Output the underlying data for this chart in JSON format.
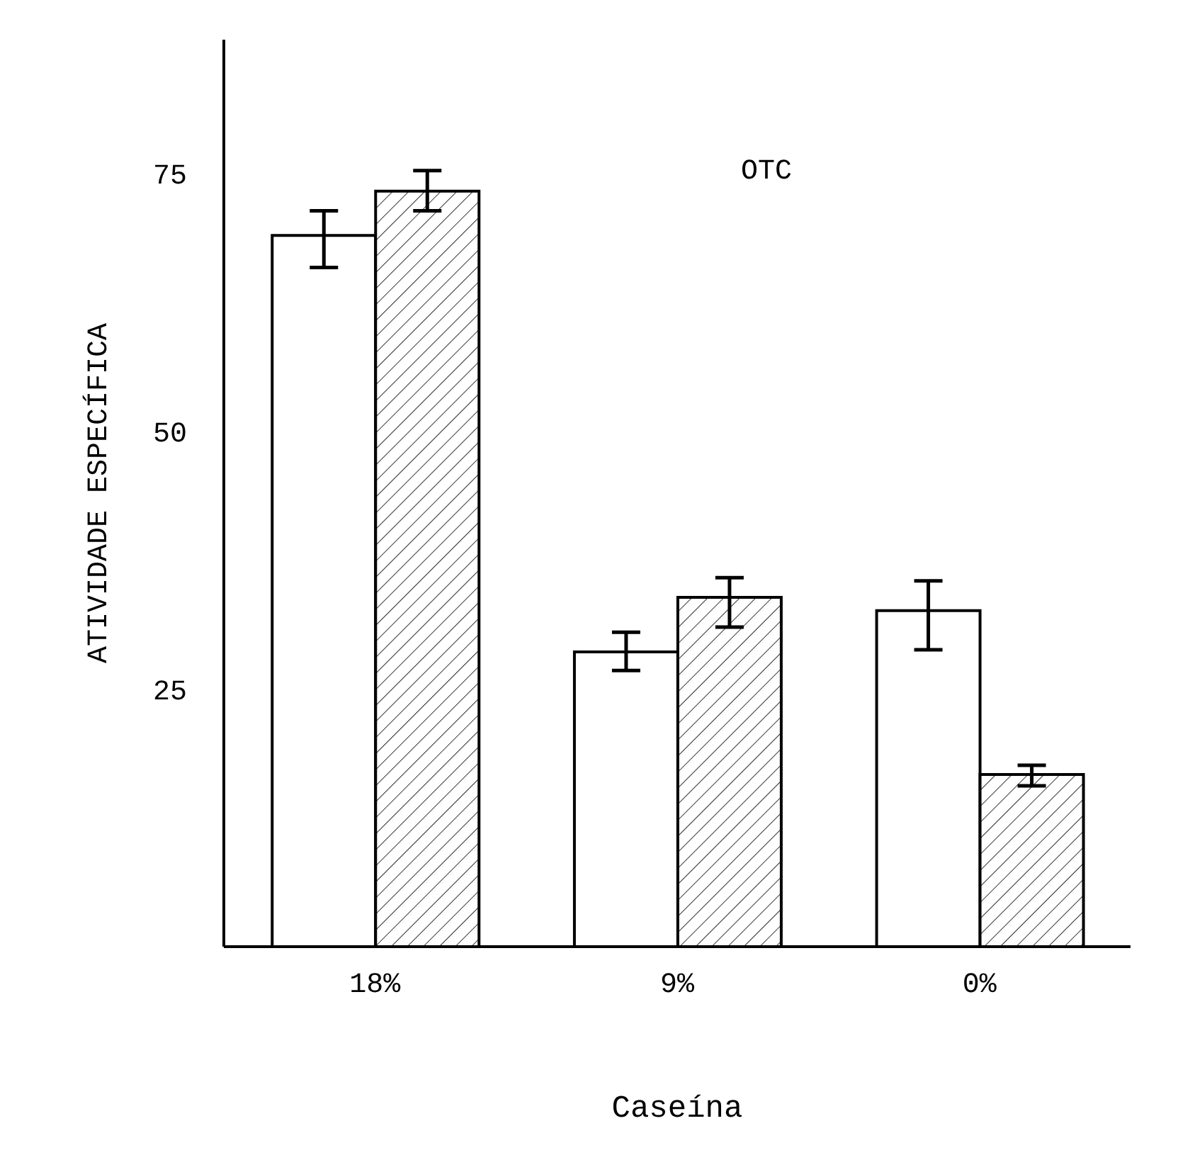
{
  "chart_data": {
    "type": "bar",
    "categories": [
      "18%",
      "9%",
      "0%"
    ],
    "series": [
      {
        "color": "#ffffff",
        "values": [
          69.0,
          28.6,
          32.6
        ],
        "errors": [
          [
            65.9,
            71.4
          ],
          [
            26.8,
            30.5
          ],
          [
            28.8,
            35.5
          ]
        ]
      },
      {
        "color": "#000000",
        "values": [
          73.3,
          33.9,
          16.7
        ],
        "errors": [
          [
            71.4,
            75.3
          ],
          [
            31.0,
            35.8
          ],
          [
            15.6,
            17.6
          ]
        ]
      }
    ],
    "xlabel": "Caseína",
    "ylabel": "ATIVIDADE ESPECÍFICA",
    "annotations": [
      "OTC"
    ],
    "ylim": [
      0,
      88
    ],
    "yticks": [
      25,
      50,
      75
    ],
    "grid": false,
    "legend": false
  }
}
